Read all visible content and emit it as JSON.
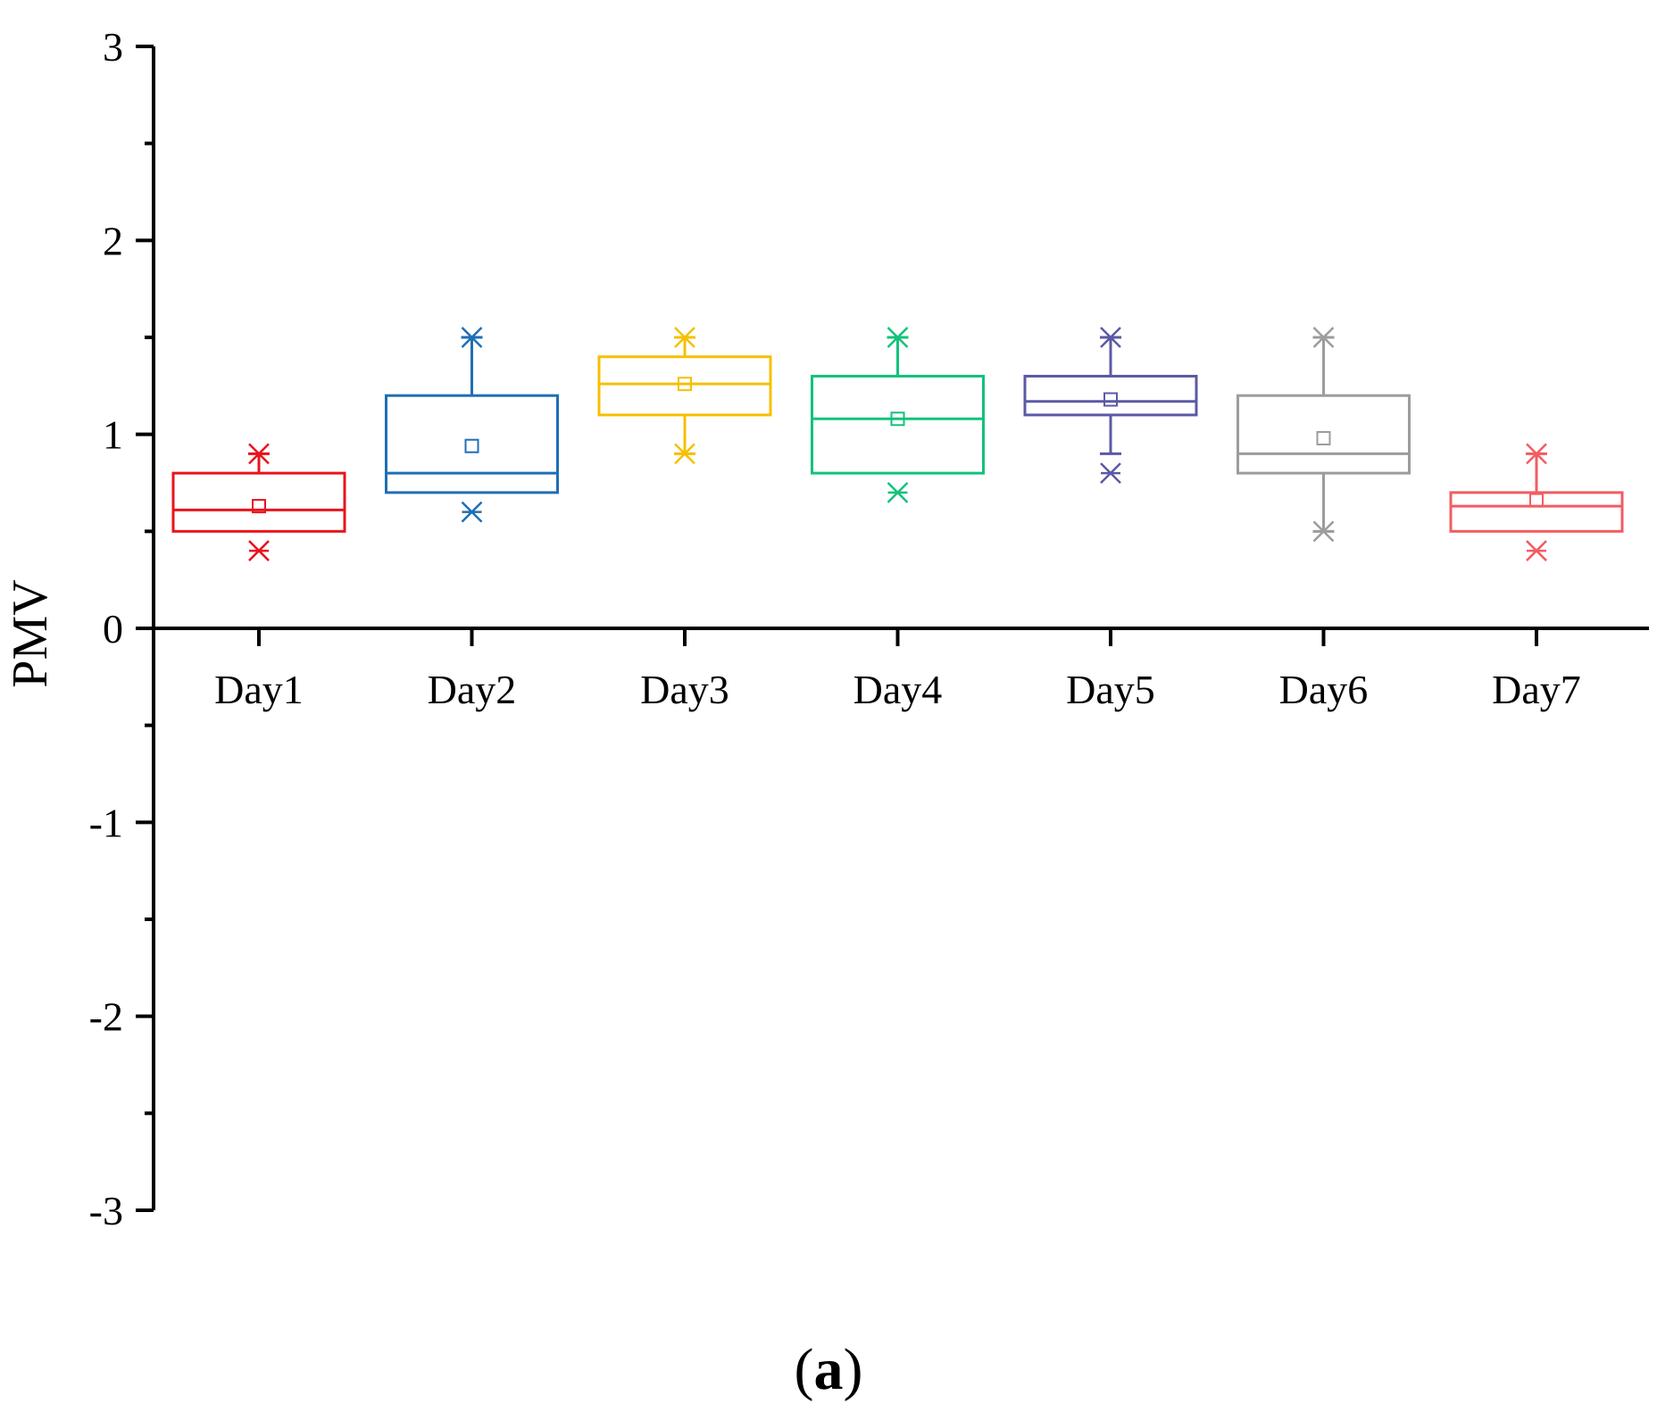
{
  "chart_data": {
    "type": "box",
    "title": "",
    "xlabel": "",
    "ylabel": "PMV",
    "ylim": [
      -3,
      3
    ],
    "y_ticks": [
      -3,
      -2,
      -1,
      0,
      1,
      2,
      3
    ],
    "y_tick_labels": [
      "-3",
      "-2",
      "-1",
      "0",
      "1",
      "2",
      "3"
    ],
    "y_minor_step": 0.5,
    "grid": false,
    "x_axis_at_y": 0,
    "categories": [
      "Day1",
      "Day2",
      "Day3",
      "Day4",
      "Day5",
      "Day6",
      "Day7"
    ],
    "series": [
      {
        "name": "Day1",
        "color": "#e8141c",
        "whisker_min": 0.5,
        "q1": 0.5,
        "median": 0.61,
        "q3": 0.8,
        "whisker_max": 0.9,
        "mean": 0.63,
        "outliers": [
          0.4,
          0.9
        ]
      },
      {
        "name": "Day2",
        "color": "#1f6eb5",
        "whisker_min": 0.7,
        "q1": 0.7,
        "median": 0.8,
        "q3": 1.2,
        "whisker_max": 1.5,
        "mean": 0.94,
        "outliers": [
          0.6,
          1.5
        ]
      },
      {
        "name": "Day3",
        "color": "#f5c000",
        "whisker_min": 0.9,
        "q1": 1.1,
        "median": 1.26,
        "q3": 1.4,
        "whisker_max": 1.5,
        "mean": 1.26,
        "outliers": [
          0.9,
          1.5
        ]
      },
      {
        "name": "Day4",
        "color": "#13c27a",
        "whisker_min": 0.8,
        "q1": 0.8,
        "median": 1.08,
        "q3": 1.3,
        "whisker_max": 1.5,
        "mean": 1.08,
        "outliers": [
          0.7,
          1.5
        ]
      },
      {
        "name": "Day5",
        "color": "#5b59a4",
        "whisker_min": 0.9,
        "q1": 1.1,
        "median": 1.17,
        "q3": 1.3,
        "whisker_max": 1.5,
        "mean": 1.18,
        "outliers": [
          0.8,
          1.5
        ]
      },
      {
        "name": "Day6",
        "color": "#9c9c9c",
        "whisker_min": 0.5,
        "q1": 0.8,
        "median": 0.9,
        "q3": 1.2,
        "whisker_max": 1.5,
        "mean": 0.98,
        "outliers": [
          0.5,
          1.5
        ]
      },
      {
        "name": "Day7",
        "color": "#f25c62",
        "whisker_min": 0.5,
        "q1": 0.5,
        "median": 0.63,
        "q3": 0.7,
        "whisker_max": 0.9,
        "mean": 0.66,
        "outliers": [
          0.4,
          0.9
        ]
      }
    ]
  },
  "caption": {
    "open": "(",
    "letter": "a",
    "close": ")"
  }
}
